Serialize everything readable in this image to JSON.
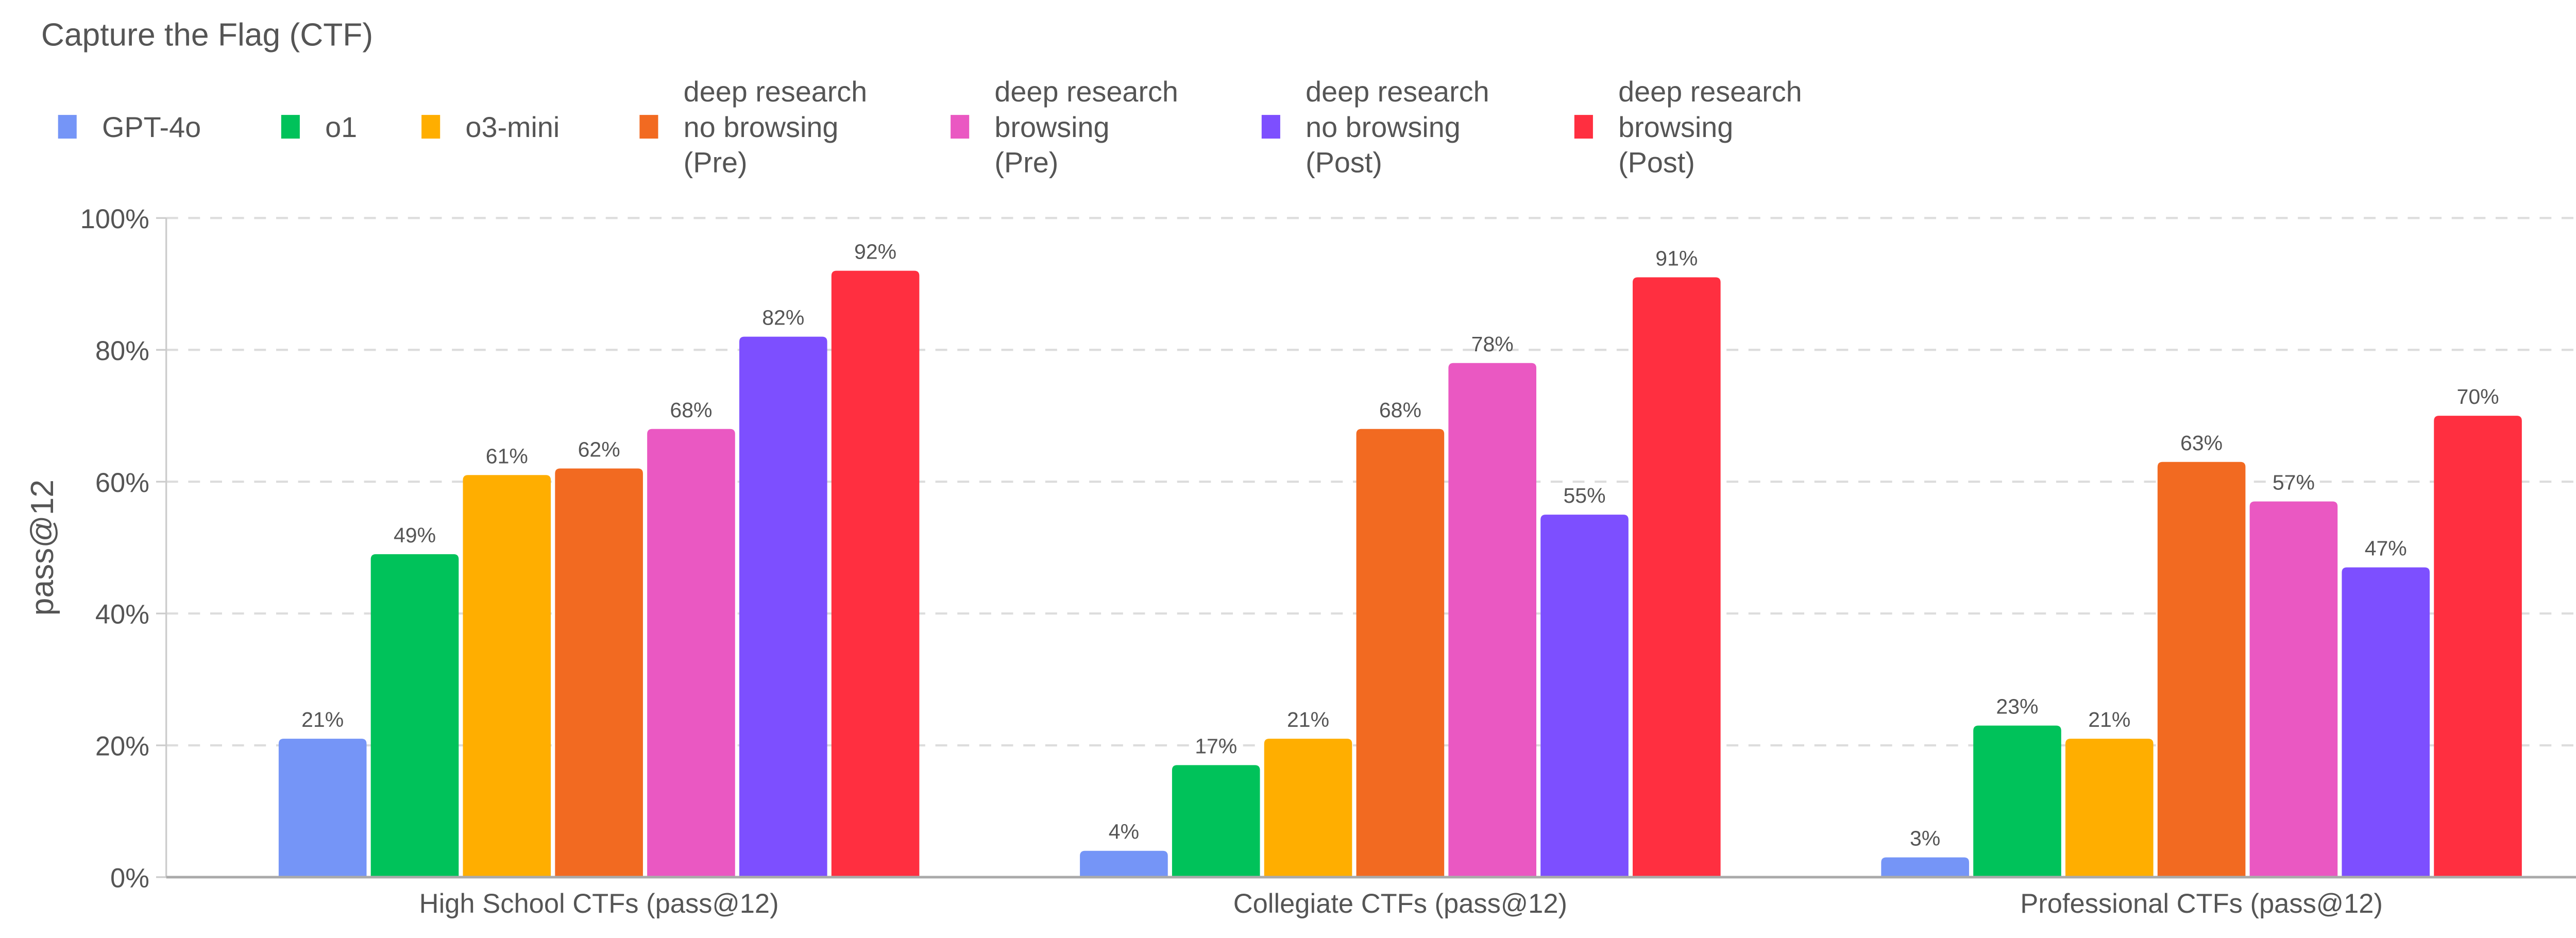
{
  "chart_data": {
    "type": "bar",
    "title": "Capture the Flag (CTF)",
    "xlabel": "",
    "ylabel": "pass@12",
    "ylim": [
      0,
      100
    ],
    "yticks": [
      "0%",
      "20%",
      "40%",
      "60%",
      "80%",
      "100%"
    ],
    "grid": true,
    "legend_placement": "top-left",
    "categories": [
      "High School CTFs (pass@12)",
      "Collegiate CTFs (pass@12)",
      "Professional CTFs (pass@12)"
    ],
    "series": [
      {
        "name": "GPT-4o",
        "legend_lines": [
          "GPT-4o"
        ],
        "color": "#7595F7",
        "values": [
          21,
          4,
          3
        ],
        "labels": [
          "21%",
          "4%",
          "3%"
        ]
      },
      {
        "name": "o1",
        "legend_lines": [
          "o1"
        ],
        "color": "#00C25A",
        "values": [
          49,
          17,
          23
        ],
        "labels": [
          "49%",
          "17%",
          "23%"
        ]
      },
      {
        "name": "o3-mini",
        "legend_lines": [
          "o3-mini"
        ],
        "color": "#FFAE00",
        "values": [
          61,
          21,
          21
        ],
        "labels": [
          "61%",
          "21%",
          "21%"
        ]
      },
      {
        "name": "deep research no browsing (Pre)",
        "legend_lines": [
          "deep research",
          "no browsing",
          "(Pre)"
        ],
        "color": "#F26A21",
        "values": [
          62,
          68,
          63
        ],
        "labels": [
          "62%",
          "68%",
          "63%"
        ]
      },
      {
        "name": "deep research browsing (Pre)",
        "legend_lines": [
          "deep research",
          "browsing",
          "(Pre)"
        ],
        "color": "#EA58C2",
        "values": [
          68,
          78,
          57
        ],
        "labels": [
          "68%",
          "78%",
          "57%"
        ]
      },
      {
        "name": "deep research no browsing (Post)",
        "legend_lines": [
          "deep research",
          "no browsing",
          "(Post)"
        ],
        "color": "#7D4FFF",
        "values": [
          82,
          55,
          47
        ],
        "labels": [
          "82%",
          "55%",
          "47%"
        ]
      },
      {
        "name": "deep research browsing (Post)",
        "legend_lines": [
          "deep research",
          "browsing",
          "(Post)"
        ],
        "color": "#FF2F40",
        "values": [
          92,
          91,
          70
        ],
        "labels": [
          "92%",
          "91%",
          "70%"
        ]
      }
    ]
  }
}
